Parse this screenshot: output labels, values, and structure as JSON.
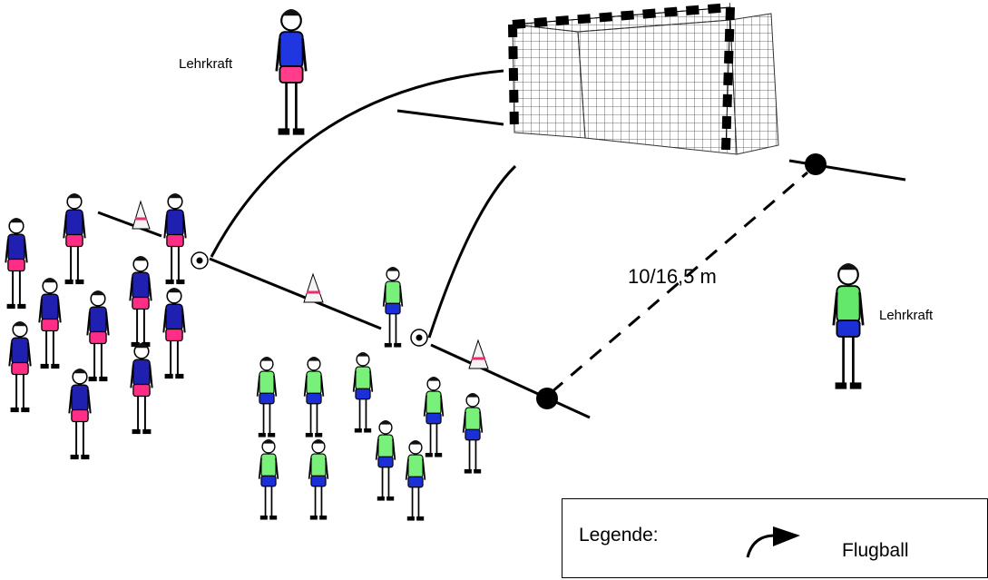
{
  "labels": {
    "teacher_top": "Lehrkraft",
    "teacher_right": "Lehrkraft",
    "distance": "10/16,5 m"
  },
  "legend": {
    "title": "Legende:",
    "flugball": "Flugball"
  },
  "colors": {
    "team_a_shirt": "#1f1fb0",
    "team_a_shorts": "#ff2d86",
    "team_b_shirt": "#79f07a",
    "team_b_shorts": "#1a2fd6",
    "teacher_top_shirt": "#2036e0",
    "teacher_top_shorts": "#ff3d8a",
    "teacher_right_shirt": "#63e86a",
    "teacher_right_shorts": "#1a2fd6",
    "cone_band": "#e8306f"
  },
  "icons": [
    "player-figure",
    "cone-icon",
    "ball-icon",
    "goal-net",
    "marker-dot",
    "curved-arrow-icon"
  ]
}
